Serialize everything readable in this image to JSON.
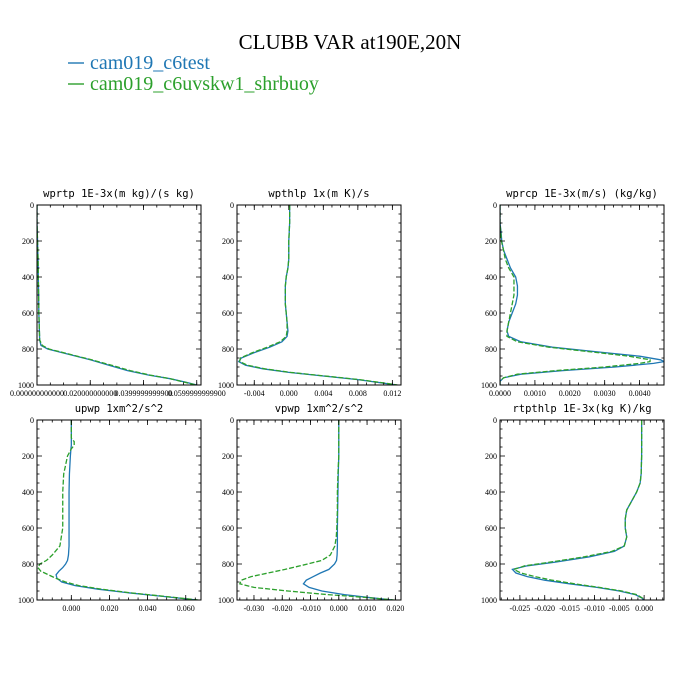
{
  "figure": {
    "title": "CLUBB VAR at190E,20N",
    "colors": {
      "blue": "#1f77b4",
      "green": "#2ca02c"
    }
  },
  "legend": [
    {
      "name": "cam019_c6test",
      "color": "#1f77b4",
      "style": "solid"
    },
    {
      "name": "cam019_c6uvskw1_shrbuoy",
      "color": "#2ca02c",
      "style": "dashed"
    }
  ],
  "chart_data": [
    {
      "type": "line",
      "title": "wprtp  1E-3x(m kg)/(s kg)",
      "xlim": [
        0,
        0.0616
      ],
      "ylim": [
        1000,
        0
      ],
      "xticks": [
        0,
        0.02,
        0.04,
        0.06
      ],
      "xticklabels": [
        "0.000000000000",
        "0.020000000000",
        "0.0399999999900",
        "0.0599999999900"
      ],
      "yticks": [
        0,
        200,
        400,
        600,
        800,
        1000
      ],
      "yticklabels": [
        "0",
        "200",
        "400",
        "600",
        "800",
        "1000"
      ],
      "y": [
        0,
        100,
        200,
        300,
        400,
        500,
        600,
        700,
        750,
        780,
        800,
        830,
        860,
        890,
        920,
        945,
        965,
        985,
        1000
      ],
      "series": [
        {
          "name": "cam019_c6test",
          "x": [
            0,
            0,
            0.0002,
            0.0004,
            0.0005,
            0.0006,
            0.0007,
            0.0009,
            0.001,
            0.0015,
            0.004,
            0.012,
            0.02,
            0.027,
            0.034,
            0.042,
            0.05,
            0.056,
            0.06
          ]
        },
        {
          "name": "cam019_c6uvskw1_shrbuoy",
          "x": [
            0,
            0,
            0.0002,
            0.0004,
            0.0005,
            0.0006,
            0.0007,
            0.0009,
            0.001,
            0.002,
            0.0045,
            0.0125,
            0.0205,
            0.028,
            0.035,
            0.0425,
            0.05,
            0.0555,
            0.0598
          ]
        }
      ]
    },
    {
      "type": "line",
      "title": "wpthlp  1x(m K)/s",
      "xlim": [
        -0.006,
        0.013
      ],
      "ylim": [
        1000,
        0
      ],
      "xticks": [
        -0.004,
        0,
        0.004,
        0.008,
        0.012
      ],
      "xticklabels": [
        "-0.004",
        "0.000",
        "0.004",
        "0.008",
        "0.012"
      ],
      "yticks": [
        0,
        200,
        400,
        600,
        800,
        1000
      ],
      "yticklabels": [
        "0",
        "200",
        "400",
        "600",
        "800",
        "1000"
      ],
      "y": [
        0,
        100,
        200,
        300,
        350,
        400,
        450,
        500,
        550,
        600,
        650,
        700,
        730,
        760,
        790,
        820,
        850,
        870,
        890,
        910,
        930,
        950,
        970,
        990,
        1000
      ],
      "series": [
        {
          "name": "cam019_c6test",
          "x": [
            0.0001,
            0.0001,
            0,
            0,
            -0.0001,
            -0.0003,
            -0.0004,
            -0.0004,
            -0.0004,
            -0.0003,
            -0.0002,
            -0.0001,
            -0.0002,
            -0.0008,
            -0.0022,
            -0.004,
            -0.0055,
            -0.0058,
            -0.005,
            -0.003,
            0,
            0.004,
            0.008,
            0.011,
            0.0125
          ]
        },
        {
          "name": "cam019_c6uvskw1_shrbuoy",
          "x": [
            0.0001,
            0.0001,
            0,
            0,
            -0.0001,
            -0.0003,
            -0.0004,
            -0.0004,
            -0.0004,
            -0.0003,
            -0.0002,
            -0.0002,
            -0.0003,
            -0.001,
            -0.0025,
            -0.0042,
            -0.0056,
            -0.0057,
            -0.0048,
            -0.0028,
            0.0002,
            0.0042,
            0.0082,
            0.0112,
            0.0126
          ]
        }
      ]
    },
    {
      "type": "line",
      "title": "wprcp  1E-3x(m/s) (kg/kg)",
      "xlim": [
        0,
        0.0047
      ],
      "ylim": [
        1000,
        0
      ],
      "xticks": [
        0,
        0.001,
        0.002,
        0.003,
        0.004
      ],
      "xticklabels": [
        "0.0000",
        "0.0010",
        "0.0020",
        "0.0030",
        "0.0040"
      ],
      "yticks": [
        0,
        200,
        400,
        600,
        800,
        1000
      ],
      "yticklabels": [
        "0",
        "200",
        "400",
        "600",
        "800",
        "1000"
      ],
      "y": [
        0,
        100,
        150,
        200,
        250,
        300,
        350,
        400,
        450,
        500,
        550,
        600,
        650,
        700,
        730,
        760,
        790,
        820,
        840,
        860,
        870,
        880,
        900,
        920,
        940,
        960,
        980,
        1000
      ],
      "series": [
        {
          "name": "cam019_c6test",
          "x": [
            0,
            0,
            3e-05,
            5e-05,
            0.0001,
            0.0002,
            0.0003,
            0.00045,
            0.0005,
            0.0005,
            0.00045,
            0.00035,
            0.00025,
            0.0002,
            0.00025,
            0.0006,
            0.0015,
            0.003,
            0.004,
            0.0046,
            0.0047,
            0.0044,
            0.0033,
            0.0018,
            0.0006,
            0.0001,
            0,
            0
          ]
        },
        {
          "name": "cam019_c6uvskw1_shrbuoy",
          "x": [
            0,
            0,
            2e-05,
            4e-05,
            0.0001,
            0.00015,
            0.00025,
            0.0004,
            0.0004,
            0.0004,
            0.00035,
            0.0003,
            0.00025,
            0.0002,
            0.0002,
            0.0005,
            0.0014,
            0.0028,
            0.0037,
            0.0043,
            0.0043,
            0.004,
            0.003,
            0.0016,
            0.0005,
            0.0001,
            0,
            0
          ]
        }
      ]
    },
    {
      "type": "line",
      "title": "upwp  1xm^2/s^2",
      "xlim": [
        -0.018,
        0.068
      ],
      "ylim": [
        1000,
        0
      ],
      "xticks": [
        0,
        0.02,
        0.04,
        0.06
      ],
      "xticklabels": [
        "0.000",
        "0.020",
        "0.040",
        "0.060"
      ],
      "yticks": [
        0,
        200,
        400,
        600,
        800,
        1000
      ],
      "yticklabels": [
        "0",
        "200",
        "400",
        "600",
        "800",
        "1000"
      ],
      "y": [
        0,
        100,
        120,
        140,
        160,
        200,
        300,
        400,
        500,
        600,
        700,
        750,
        780,
        800,
        820,
        840,
        860,
        880,
        900,
        920,
        940,
        960,
        980,
        1000
      ],
      "series": [
        {
          "name": "cam019_c6test",
          "x": [
            0,
            0,
            0,
            0,
            -0.0002,
            -0.0005,
            -0.001,
            -0.0012,
            -0.0012,
            -0.0012,
            -0.0012,
            -0.0015,
            -0.002,
            -0.003,
            -0.0045,
            -0.0065,
            -0.008,
            -0.0075,
            -0.005,
            0.002,
            0.014,
            0.03,
            0.048,
            0.066
          ]
        },
        {
          "name": "cam019_c6uvskw1_shrbuoy",
          "x": [
            0,
            0,
            0.0015,
            0.0015,
            0,
            -0.002,
            -0.004,
            -0.0045,
            -0.0045,
            -0.0045,
            -0.006,
            -0.01,
            -0.013,
            -0.0165,
            -0.0175,
            -0.016,
            -0.012,
            -0.008,
            -0.003,
            0.004,
            0.016,
            0.031,
            0.049,
            0.0665
          ]
        }
      ]
    },
    {
      "type": "line",
      "title": "vpwp  1xm^2/s^2",
      "xlim": [
        -0.036,
        0.022
      ],
      "ylim": [
        1000,
        0
      ],
      "xticks": [
        -0.03,
        -0.02,
        -0.01,
        0,
        0.01,
        0.02
      ],
      "xticklabels": [
        "-0.030",
        "-0.020",
        "-0.010",
        "0.000",
        "0.010",
        "0.020"
      ],
      "yticks": [
        0,
        200,
        400,
        600,
        800,
        1000
      ],
      "yticklabels": [
        "0",
        "200",
        "400",
        "600",
        "800",
        "1000"
      ],
      "y": [
        0,
        100,
        200,
        300,
        400,
        500,
        600,
        650,
        700,
        750,
        780,
        800,
        830,
        850,
        870,
        890,
        910,
        930,
        950,
        970,
        985,
        1000
      ],
      "series": [
        {
          "name": "cam019_c6test",
          "x": [
            0,
            0,
            0,
            -0.0002,
            -0.0003,
            -0.0004,
            -0.0005,
            -0.0005,
            -0.0005,
            -0.0006,
            -0.0008,
            -0.0015,
            -0.0035,
            -0.0065,
            -0.009,
            -0.0115,
            -0.0125,
            -0.0105,
            -0.006,
            0.002,
            0.01,
            0.019
          ]
        },
        {
          "name": "cam019_c6uvskw1_shrbuoy",
          "x": [
            0,
            0,
            0,
            -0.0003,
            -0.0005,
            -0.0005,
            -0.0007,
            -0.0009,
            -0.0014,
            -0.003,
            -0.006,
            -0.011,
            -0.019,
            -0.025,
            -0.031,
            -0.0345,
            -0.035,
            -0.03,
            -0.018,
            -0.004,
            0.009,
            0.0195
          ]
        }
      ]
    },
    {
      "type": "line",
      "title": "rtpthlp  1E-3x(kg K)/kg",
      "xlim": [
        -0.029,
        0.004
      ],
      "ylim": [
        1000,
        0
      ],
      "xticks": [
        -0.025,
        -0.02,
        -0.015,
        -0.01,
        -0.005,
        0
      ],
      "xticklabels": [
        "-0.025",
        "-0.020",
        "-0.015",
        "-0.010",
        "-0.005",
        "0.000"
      ],
      "yticks": [
        0,
        200,
        400,
        600,
        800,
        1000
      ],
      "yticklabels": [
        "0",
        "200",
        "400",
        "600",
        "800",
        "1000"
      ],
      "y": [
        0,
        100,
        200,
        300,
        350,
        400,
        450,
        500,
        550,
        600,
        650,
        700,
        730,
        760,
        790,
        810,
        830,
        850,
        870,
        890,
        910,
        930,
        950,
        970,
        990,
        1000
      ],
      "series": [
        {
          "name": "cam019_c6test",
          "x": [
            -0.0005,
            -0.0005,
            -0.0005,
            -0.0006,
            -0.0008,
            -0.0015,
            -0.0025,
            -0.0035,
            -0.0038,
            -0.0038,
            -0.0035,
            -0.004,
            -0.006,
            -0.011,
            -0.018,
            -0.0235,
            -0.0265,
            -0.0258,
            -0.0235,
            -0.02,
            -0.015,
            -0.0095,
            -0.005,
            -0.0018,
            -0.0004,
            -0.0001
          ]
        },
        {
          "name": "cam019_c6uvskw1_shrbuoy",
          "x": [
            -0.0005,
            -0.0005,
            -0.0005,
            -0.0006,
            -0.0008,
            -0.0015,
            -0.0025,
            -0.0035,
            -0.0038,
            -0.0038,
            -0.0035,
            -0.004,
            -0.0065,
            -0.012,
            -0.019,
            -0.024,
            -0.0262,
            -0.0248,
            -0.022,
            -0.0185,
            -0.014,
            -0.009,
            -0.0045,
            -0.0015,
            -0.0003,
            -0.0001
          ]
        }
      ]
    }
  ]
}
